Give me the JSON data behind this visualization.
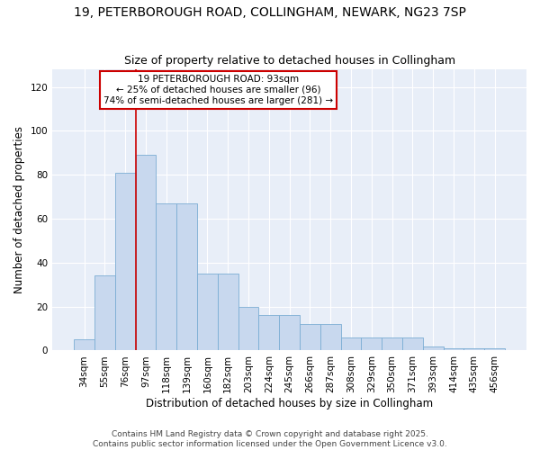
{
  "title_line1": "19, PETERBOROUGH ROAD, COLLINGHAM, NEWARK, NG23 7SP",
  "title_line2": "Size of property relative to detached houses in Collingham",
  "xlabel": "Distribution of detached houses by size in Collingham",
  "ylabel": "Number of detached properties",
  "categories": [
    "34sqm",
    "55sqm",
    "76sqm",
    "97sqm",
    "118sqm",
    "139sqm",
    "160sqm",
    "182sqm",
    "203sqm",
    "224sqm",
    "245sqm",
    "266sqm",
    "287sqm",
    "308sqm",
    "329sqm",
    "350sqm",
    "371sqm",
    "393sqm",
    "414sqm",
    "435sqm",
    "456sqm"
  ],
  "values": [
    5,
    34,
    81,
    89,
    67,
    67,
    35,
    35,
    20,
    16,
    16,
    12,
    12,
    6,
    6,
    6,
    6,
    2,
    1,
    1,
    1
  ],
  "bar_color": "#c8d8ee",
  "bar_edge_color": "#7badd4",
  "background_color": "#e8eef8",
  "grid_color": "#ffffff",
  "fig_bg_color": "#ffffff",
  "annotation_text": "19 PETERBOROUGH ROAD: 93sqm\n← 25% of detached houses are smaller (96)\n74% of semi-detached houses are larger (281) →",
  "annotation_box_color": "white",
  "annotation_box_edge": "#cc0000",
  "vline_x": 2.5,
  "vline_color": "#cc0000",
  "ylim": [
    0,
    128
  ],
  "yticks": [
    0,
    20,
    40,
    60,
    80,
    100,
    120
  ],
  "footer_line1": "Contains HM Land Registry data © Crown copyright and database right 2025.",
  "footer_line2": "Contains public sector information licensed under the Open Government Licence v3.0.",
  "title_fontsize": 10,
  "subtitle_fontsize": 9,
  "axis_label_fontsize": 8.5,
  "tick_fontsize": 7.5,
  "annotation_fontsize": 7.5,
  "footer_fontsize": 6.5
}
